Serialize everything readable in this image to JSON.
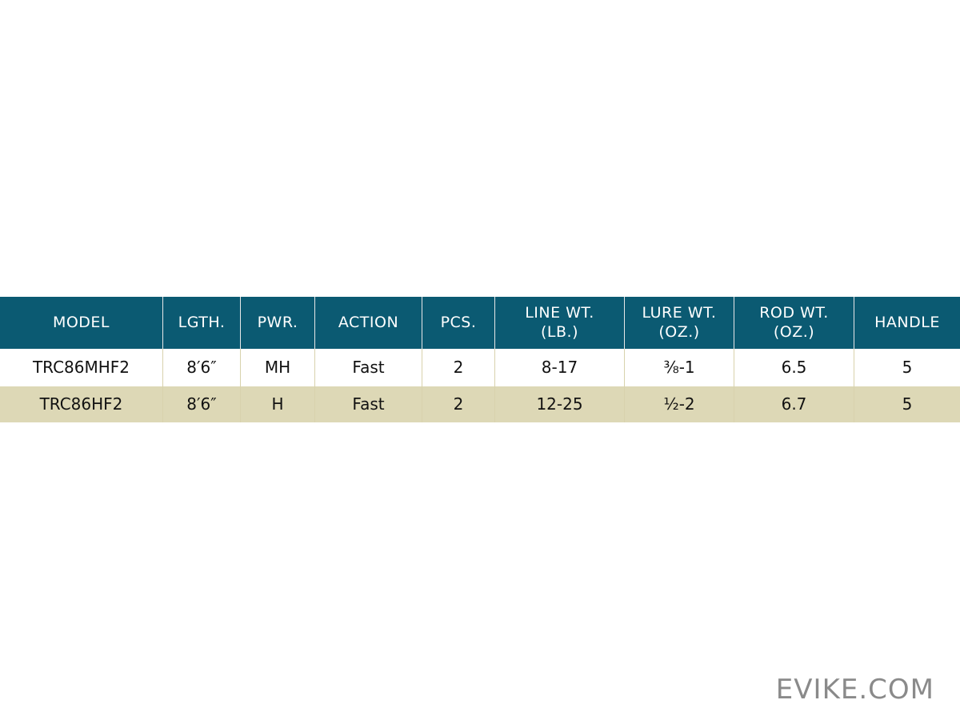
{
  "table": {
    "header": [
      [
        "MODEL"
      ],
      [
        "LGTH."
      ],
      [
        "PWR."
      ],
      [
        "ACTION"
      ],
      [
        "PCS."
      ],
      [
        "LINE WT.",
        "(LB.)"
      ],
      [
        "LURE WT.",
        "(OZ.)"
      ],
      [
        "ROD WT.",
        "(OZ.)"
      ],
      [
        "HANDLE"
      ]
    ],
    "rows": [
      [
        "TRC86MHF2",
        "8′6″",
        "MH",
        "Fast",
        "2",
        "8-17",
        "⅜-1",
        "6.5",
        "5"
      ],
      [
        "TRC86HF2",
        "8′6″",
        "H",
        "Fast",
        "2",
        "12-25",
        "½-2",
        "6.7",
        "5"
      ]
    ]
  },
  "watermark": "EVIKE.COM"
}
